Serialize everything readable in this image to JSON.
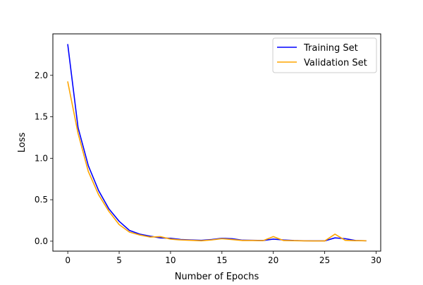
{
  "chart_data": {
    "type": "line",
    "title": "",
    "xlabel": "Number of Epochs",
    "ylabel": "Loss",
    "xlim": [
      -1.45,
      30.45
    ],
    "ylim": [
      -0.12,
      2.5
    ],
    "xticks": [
      0,
      5,
      10,
      15,
      20,
      25,
      30
    ],
    "xtick_labels": [
      "0",
      "5",
      "10",
      "15",
      "20",
      "25",
      "30"
    ],
    "yticks": [
      0.0,
      0.5,
      1.0,
      1.5,
      2.0
    ],
    "ytick_labels": [
      "0.0",
      "0.5",
      "1.0",
      "1.5",
      "2.0"
    ],
    "grid": false,
    "legend_position": "upper-right",
    "x": [
      0,
      1,
      2,
      3,
      4,
      5,
      6,
      7,
      8,
      9,
      10,
      11,
      12,
      13,
      14,
      15,
      16,
      17,
      18,
      19,
      20,
      21,
      22,
      23,
      24,
      25,
      26,
      27,
      28,
      29
    ],
    "series": [
      {
        "name": "Training Set",
        "color": "#0000ff",
        "values": [
          2.37,
          1.37,
          0.91,
          0.61,
          0.39,
          0.24,
          0.13,
          0.085,
          0.06,
          0.04,
          0.035,
          0.02,
          0.015,
          0.01,
          0.02,
          0.035,
          0.03,
          0.012,
          0.01,
          0.008,
          0.025,
          0.015,
          0.008,
          0.005,
          0.004,
          0.004,
          0.04,
          0.03,
          0.008,
          0.005
        ]
      },
      {
        "name": "Validation Set",
        "color": "#ffa500",
        "values": [
          1.92,
          1.3,
          0.84,
          0.56,
          0.36,
          0.2,
          0.11,
          0.075,
          0.05,
          0.055,
          0.025,
          0.015,
          0.01,
          0.005,
          0.015,
          0.03,
          0.02,
          0.008,
          0.008,
          0.006,
          0.055,
          0.008,
          0.006,
          0.004,
          0.003,
          0.003,
          0.085,
          0.01,
          0.006,
          0.005
        ]
      }
    ]
  }
}
